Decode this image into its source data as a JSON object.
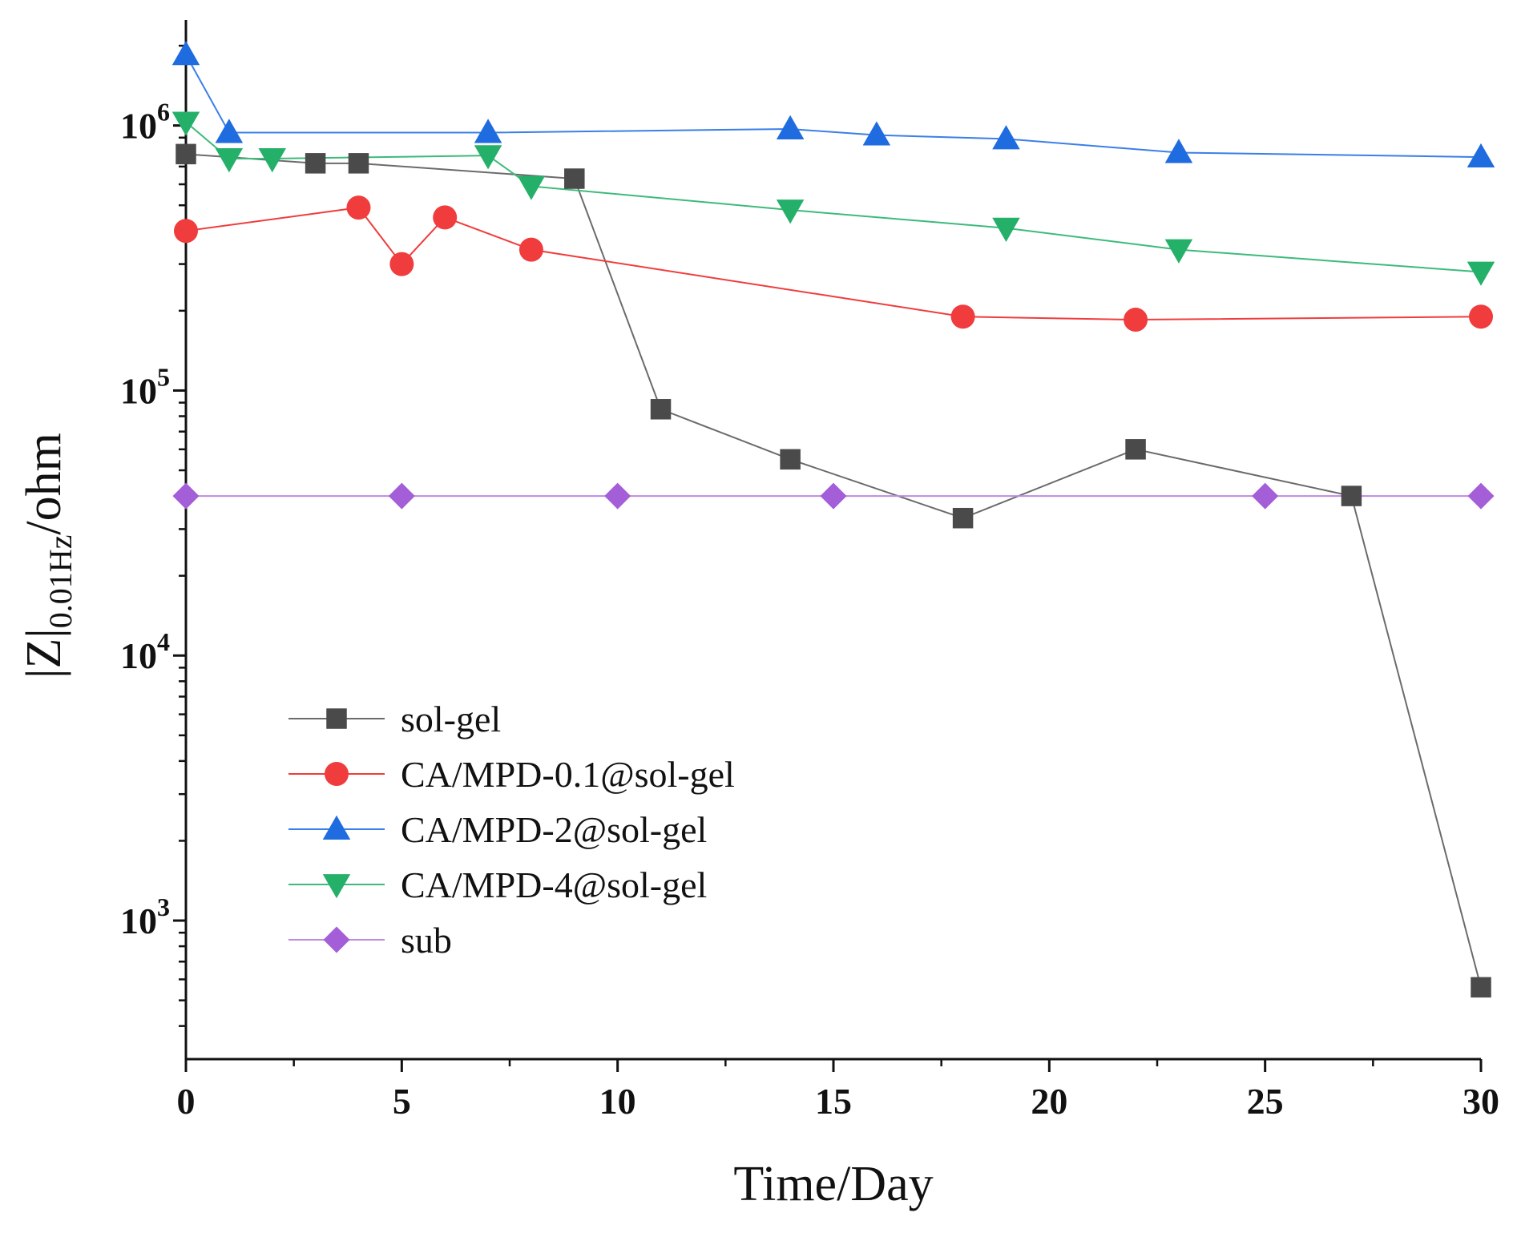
{
  "chart_data": {
    "type": "line",
    "title": "",
    "xlabel": "Time/Day",
    "ylabel": {
      "main": "|Z|",
      "sub": "0.01Hz",
      "suffix": "/ohm"
    },
    "x_scale": "linear",
    "y_scale": "log",
    "xlim": [
      0,
      30
    ],
    "ylim": [
      300,
      2500000
    ],
    "x_ticks": [
      0,
      5,
      10,
      15,
      20,
      25,
      30
    ],
    "x_tick_labels": [
      "0",
      "5",
      "10",
      "15",
      "20",
      "25",
      "30"
    ],
    "y_ticks": [
      1000,
      10000,
      100000,
      1000000
    ],
    "y_tick_labels": [
      {
        "base": "10",
        "exp": "3"
      },
      {
        "base": "10",
        "exp": "4"
      },
      {
        "base": "10",
        "exp": "5"
      },
      {
        "base": "10",
        "exp": "6"
      }
    ],
    "grid": false,
    "legend_position": "lower-left",
    "series": [
      {
        "name": "sol-gel",
        "marker": "square",
        "color": "#4a4a4a",
        "line_color": "#6b6b6b",
        "x": [
          0,
          3,
          4,
          9,
          11,
          14,
          18,
          22,
          27,
          30
        ],
        "y": [
          780000,
          720000,
          720000,
          630000,
          85000,
          55000,
          33000,
          60000,
          40000,
          560
        ]
      },
      {
        "name": "CA/MPD-0.1@sol-gel",
        "marker": "circle",
        "color": "#f03c3c",
        "line_color": "#f03c3c",
        "x": [
          0,
          4,
          5,
          6,
          8,
          18,
          22,
          30
        ],
        "y": [
          400000,
          490000,
          300000,
          450000,
          340000,
          190000,
          185000,
          190000
        ]
      },
      {
        "name": "CA/MPD-2@sol-gel",
        "marker": "triangle-up",
        "color": "#1f6be0",
        "line_color": "#3a7fe8",
        "x": [
          0,
          1,
          7,
          14,
          16,
          19,
          23,
          30
        ],
        "y": [
          1850000,
          940000,
          940000,
          970000,
          920000,
          890000,
          790000,
          760000
        ]
      },
      {
        "name": "CA/MPD-4@sol-gel",
        "marker": "triangle-down",
        "color": "#25b06a",
        "line_color": "#3dba7a",
        "x": [
          0,
          1,
          2,
          7,
          8,
          14,
          19,
          23,
          30
        ],
        "y": [
          1030000,
          750000,
          750000,
          770000,
          590000,
          480000,
          410000,
          340000,
          280000
        ]
      },
      {
        "name": "sub",
        "marker": "diamond",
        "color": "#a45ed8",
        "line_color": "#c08ae6",
        "x": [
          0,
          5,
          10,
          15,
          25,
          30
        ],
        "y": [
          40000,
          40000,
          40000,
          40000,
          40000,
          40000
        ]
      }
    ]
  }
}
